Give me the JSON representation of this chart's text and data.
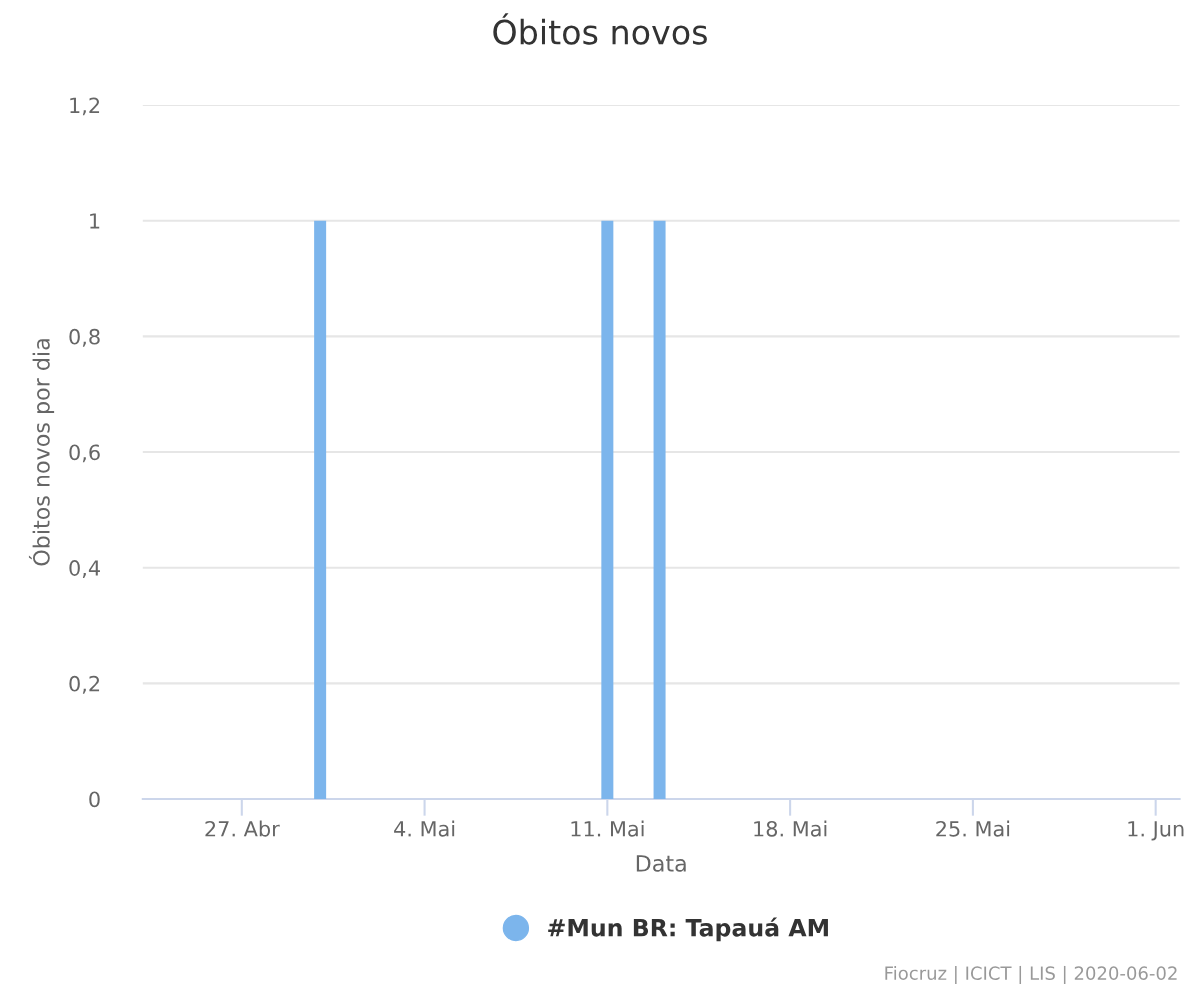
{
  "chart_data": {
    "type": "bar",
    "title": "Óbitos novos",
    "xlabel": "Data",
    "ylabel": "Óbitos novos por dia",
    "x": [
      "2020-04-30",
      "2020-05-11",
      "2020-05-13"
    ],
    "series": [
      {
        "name": "#Mun BR: Tapauá AM",
        "color": "#7cb5ec",
        "values": [
          1,
          1,
          1
        ]
      }
    ],
    "xlim": [
      "2020-04-23T05:00",
      "2020-06-01T22:00"
    ],
    "xticks": [
      {
        "value": "2020-04-27",
        "label": "27. Abr"
      },
      {
        "value": "2020-05-04",
        "label": "4. Mai"
      },
      {
        "value": "2020-05-11",
        "label": "11. Mai"
      },
      {
        "value": "2020-05-18",
        "label": "18. Mai"
      },
      {
        "value": "2020-05-25",
        "label": "25. Mai"
      },
      {
        "value": "2020-06-01",
        "label": "1. Jun"
      }
    ],
    "ylim": [
      0,
      1.2
    ],
    "yticks": [
      0,
      {
        "value": 0.2,
        "label": "0,2"
      },
      {
        "value": 0.4,
        "label": "0,4"
      },
      {
        "value": 0.6,
        "label": "0,6"
      },
      {
        "value": 0.8,
        "label": "0,8"
      },
      1,
      {
        "value": 1.2,
        "label": "1,2"
      }
    ],
    "grid": "y",
    "legend": "bottom",
    "marker": "circle",
    "annotations": [
      "Fiocruz | ICICT | LIS | 2020-06-02"
    ]
  }
}
